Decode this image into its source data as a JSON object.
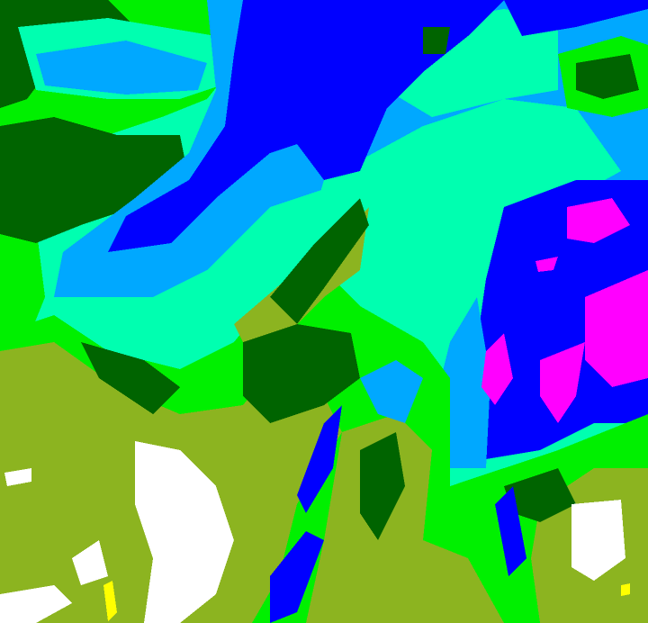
{
  "image": {
    "kind": "false-color classified satellite imagery",
    "palette": {
      "olive": "#8cb420",
      "dark_green": "#006400",
      "green": "#00f000",
      "aquamarine": "#00ffb0",
      "sky_blue": "#00a8ff",
      "blue": "#0000ff",
      "magenta": "#ff00ff",
      "white": "#ffffff",
      "yellow": "#ffff00"
    }
  }
}
